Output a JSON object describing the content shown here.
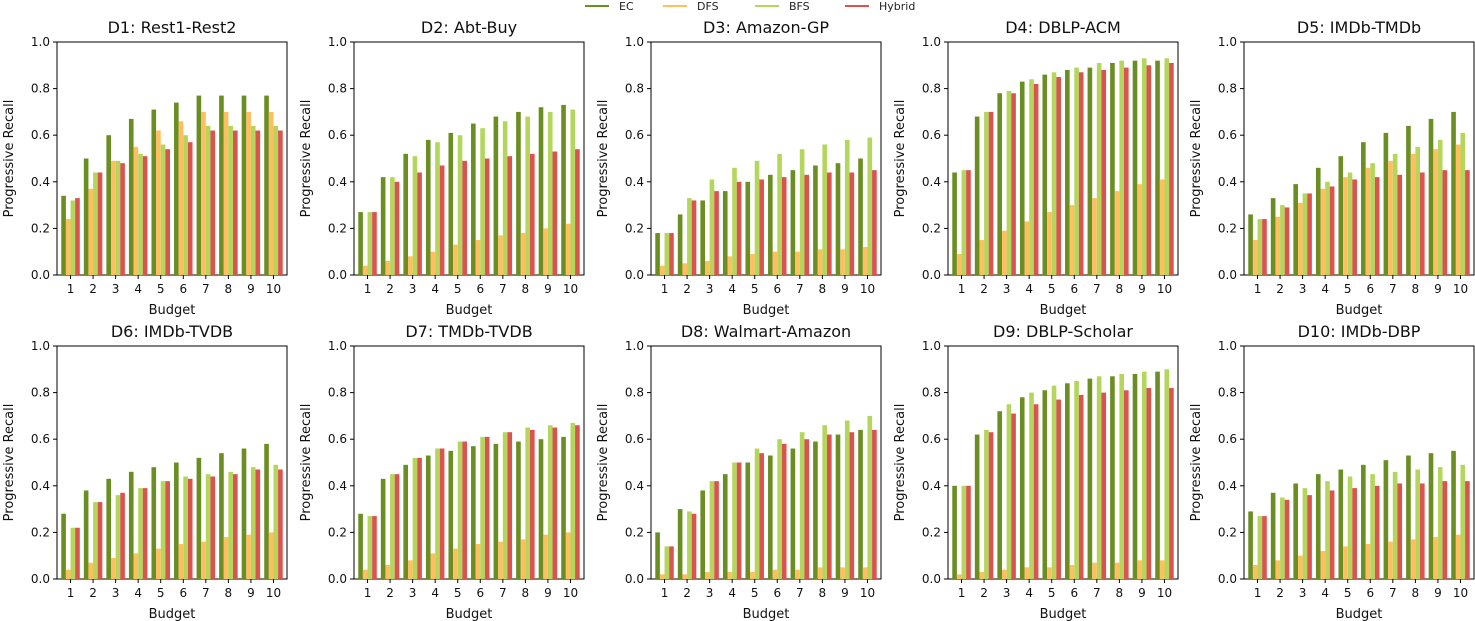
{
  "legend": {
    "items": [
      {
        "name": "EC",
        "color": "#6b8e23"
      },
      {
        "name": "DFS",
        "color": "#ffbf60"
      },
      {
        "name": "BFS",
        "color": "#b5d65c"
      },
      {
        "name": "Hybrid",
        "color": "#d9534f"
      }
    ]
  },
  "chart_data": [
    {
      "type": "bar",
      "title": "D1: Rest1-Rest2",
      "xlabel": "Budget",
      "ylabel": "Progressive Recall",
      "ylim": [
        0,
        1.0
      ],
      "yticks": [
        "0.0",
        "0.2",
        "0.4",
        "0.6",
        "0.8",
        "1.0"
      ],
      "categories": [
        "1",
        "2",
        "3",
        "4",
        "5",
        "6",
        "7",
        "8",
        "9",
        "10"
      ],
      "series": [
        {
          "name": "EC",
          "values": [
            0.34,
            0.5,
            0.6,
            0.67,
            0.71,
            0.74,
            0.77,
            0.77,
            0.77,
            0.77
          ]
        },
        {
          "name": "DFS",
          "values": [
            0.24,
            0.37,
            0.49,
            0.55,
            0.62,
            0.66,
            0.7,
            0.7,
            0.7,
            0.7
          ]
        },
        {
          "name": "BFS",
          "values": [
            0.32,
            0.44,
            0.49,
            0.52,
            0.56,
            0.6,
            0.64,
            0.64,
            0.64,
            0.64
          ]
        },
        {
          "name": "Hybrid",
          "values": [
            0.33,
            0.44,
            0.48,
            0.51,
            0.54,
            0.57,
            0.62,
            0.62,
            0.62,
            0.62
          ]
        }
      ]
    },
    {
      "type": "bar",
      "title": "D2: Abt-Buy",
      "xlabel": "Budget",
      "ylabel": "Progressive Recall",
      "ylim": [
        0,
        1.0
      ],
      "yticks": [
        "0.0",
        "0.2",
        "0.4",
        "0.6",
        "0.8",
        "1.0"
      ],
      "categories": [
        "1",
        "2",
        "3",
        "4",
        "5",
        "6",
        "7",
        "8",
        "9",
        "10"
      ],
      "series": [
        {
          "name": "EC",
          "values": [
            0.27,
            0.42,
            0.52,
            0.58,
            0.61,
            0.65,
            0.68,
            0.7,
            0.72,
            0.73
          ]
        },
        {
          "name": "DFS",
          "values": [
            0.04,
            0.06,
            0.08,
            0.1,
            0.13,
            0.15,
            0.17,
            0.18,
            0.2,
            0.22
          ]
        },
        {
          "name": "BFS",
          "values": [
            0.27,
            0.42,
            0.51,
            0.57,
            0.6,
            0.63,
            0.66,
            0.68,
            0.7,
            0.71
          ]
        },
        {
          "name": "Hybrid",
          "values": [
            0.27,
            0.4,
            0.44,
            0.47,
            0.49,
            0.5,
            0.51,
            0.52,
            0.53,
            0.54
          ]
        }
      ]
    },
    {
      "type": "bar",
      "title": "D3: Amazon-GP",
      "xlabel": "Budget",
      "ylabel": "Progressive Recall",
      "ylim": [
        0,
        1.0
      ],
      "yticks": [
        "0.0",
        "0.2",
        "0.4",
        "0.6",
        "0.8",
        "1.0"
      ],
      "categories": [
        "1",
        "2",
        "3",
        "4",
        "5",
        "6",
        "7",
        "8",
        "9",
        "10"
      ],
      "series": [
        {
          "name": "EC",
          "values": [
            0.18,
            0.26,
            0.32,
            0.36,
            0.4,
            0.43,
            0.45,
            0.47,
            0.48,
            0.5
          ]
        },
        {
          "name": "DFS",
          "values": [
            0.04,
            0.05,
            0.06,
            0.08,
            0.09,
            0.1,
            0.1,
            0.11,
            0.11,
            0.12
          ]
        },
        {
          "name": "BFS",
          "values": [
            0.18,
            0.33,
            0.41,
            0.46,
            0.49,
            0.52,
            0.54,
            0.56,
            0.58,
            0.59
          ]
        },
        {
          "name": "Hybrid",
          "values": [
            0.18,
            0.32,
            0.36,
            0.4,
            0.41,
            0.42,
            0.43,
            0.44,
            0.44,
            0.45
          ]
        }
      ]
    },
    {
      "type": "bar",
      "title": "D4: DBLP-ACM",
      "xlabel": "Budget",
      "ylabel": "Progressive Recall",
      "ylim": [
        0,
        1.0
      ],
      "yticks": [
        "0.0",
        "0.2",
        "0.4",
        "0.6",
        "0.8",
        "1.0"
      ],
      "categories": [
        "1",
        "2",
        "3",
        "4",
        "5",
        "6",
        "7",
        "8",
        "9",
        "10"
      ],
      "series": [
        {
          "name": "EC",
          "values": [
            0.44,
            0.68,
            0.78,
            0.83,
            0.86,
            0.88,
            0.89,
            0.91,
            0.92,
            0.92
          ]
        },
        {
          "name": "DFS",
          "values": [
            0.09,
            0.15,
            0.19,
            0.23,
            0.27,
            0.3,
            0.33,
            0.36,
            0.39,
            0.41
          ]
        },
        {
          "name": "BFS",
          "values": [
            0.45,
            0.7,
            0.79,
            0.84,
            0.87,
            0.89,
            0.91,
            0.92,
            0.93,
            0.93
          ]
        },
        {
          "name": "Hybrid",
          "values": [
            0.45,
            0.7,
            0.78,
            0.82,
            0.85,
            0.87,
            0.88,
            0.89,
            0.9,
            0.91
          ]
        }
      ]
    },
    {
      "type": "bar",
      "title": "D5: IMDb-TMDb",
      "xlabel": "Budget",
      "ylabel": "Progressive Recall",
      "ylim": [
        0,
        1.0
      ],
      "yticks": [
        "0.0",
        "0.2",
        "0.4",
        "0.6",
        "0.8",
        "1.0"
      ],
      "categories": [
        "1",
        "2",
        "3",
        "4",
        "5",
        "6",
        "7",
        "8",
        "9",
        "10"
      ],
      "series": [
        {
          "name": "EC",
          "values": [
            0.26,
            0.33,
            0.39,
            0.46,
            0.51,
            0.57,
            0.61,
            0.64,
            0.67,
            0.7
          ]
        },
        {
          "name": "DFS",
          "values": [
            0.15,
            0.25,
            0.31,
            0.37,
            0.42,
            0.46,
            0.49,
            0.52,
            0.54,
            0.56
          ]
        },
        {
          "name": "BFS",
          "values": [
            0.24,
            0.3,
            0.35,
            0.4,
            0.44,
            0.48,
            0.52,
            0.55,
            0.58,
            0.61
          ]
        },
        {
          "name": "Hybrid",
          "values": [
            0.24,
            0.29,
            0.35,
            0.38,
            0.41,
            0.42,
            0.43,
            0.44,
            0.45,
            0.45
          ]
        }
      ]
    },
    {
      "type": "bar",
      "title": "D6: IMDb-TVDB",
      "xlabel": "Budget",
      "ylabel": "Progressive Recall",
      "ylim": [
        0,
        1.0
      ],
      "yticks": [
        "0.0",
        "0.2",
        "0.4",
        "0.6",
        "0.8",
        "1.0"
      ],
      "categories": [
        "1",
        "2",
        "3",
        "4",
        "5",
        "6",
        "7",
        "8",
        "9",
        "10"
      ],
      "series": [
        {
          "name": "EC",
          "values": [
            0.28,
            0.38,
            0.43,
            0.46,
            0.48,
            0.5,
            0.52,
            0.54,
            0.56,
            0.58
          ]
        },
        {
          "name": "DFS",
          "values": [
            0.04,
            0.07,
            0.09,
            0.11,
            0.13,
            0.15,
            0.16,
            0.18,
            0.19,
            0.2
          ]
        },
        {
          "name": "BFS",
          "values": [
            0.22,
            0.33,
            0.36,
            0.39,
            0.42,
            0.44,
            0.45,
            0.46,
            0.48,
            0.49
          ]
        },
        {
          "name": "Hybrid",
          "values": [
            0.22,
            0.33,
            0.37,
            0.39,
            0.42,
            0.43,
            0.44,
            0.45,
            0.47,
            0.47
          ]
        }
      ]
    },
    {
      "type": "bar",
      "title": "D7: TMDb-TVDB",
      "xlabel": "Budget",
      "ylabel": "Progressive Recall",
      "ylim": [
        0,
        1.0
      ],
      "yticks": [
        "0.0",
        "0.2",
        "0.4",
        "0.6",
        "0.8",
        "1.0"
      ],
      "categories": [
        "1",
        "2",
        "3",
        "4",
        "5",
        "6",
        "7",
        "8",
        "9",
        "10"
      ],
      "series": [
        {
          "name": "EC",
          "values": [
            0.28,
            0.43,
            0.49,
            0.53,
            0.55,
            0.57,
            0.58,
            0.59,
            0.6,
            0.61
          ]
        },
        {
          "name": "DFS",
          "values": [
            0.04,
            0.06,
            0.08,
            0.11,
            0.13,
            0.15,
            0.16,
            0.17,
            0.19,
            0.2
          ]
        },
        {
          "name": "BFS",
          "values": [
            0.27,
            0.45,
            0.52,
            0.56,
            0.59,
            0.61,
            0.63,
            0.65,
            0.66,
            0.67
          ]
        },
        {
          "name": "Hybrid",
          "values": [
            0.27,
            0.45,
            0.52,
            0.56,
            0.59,
            0.61,
            0.63,
            0.64,
            0.65,
            0.66
          ]
        }
      ]
    },
    {
      "type": "bar",
      "title": "D8: Walmart-Amazon",
      "xlabel": "Budget",
      "ylabel": "Progressive Recall",
      "ylim": [
        0,
        1.0
      ],
      "yticks": [
        "0.0",
        "0.2",
        "0.4",
        "0.6",
        "0.8",
        "1.0"
      ],
      "categories": [
        "1",
        "2",
        "3",
        "4",
        "5",
        "6",
        "7",
        "8",
        "9",
        "10"
      ],
      "series": [
        {
          "name": "EC",
          "values": [
            0.2,
            0.3,
            0.38,
            0.45,
            0.5,
            0.53,
            0.56,
            0.59,
            0.62,
            0.64
          ]
        },
        {
          "name": "DFS",
          "values": [
            0.02,
            0.02,
            0.03,
            0.03,
            0.03,
            0.04,
            0.04,
            0.05,
            0.05,
            0.05
          ]
        },
        {
          "name": "BFS",
          "values": [
            0.14,
            0.29,
            0.42,
            0.5,
            0.56,
            0.6,
            0.63,
            0.66,
            0.68,
            0.7
          ]
        },
        {
          "name": "Hybrid",
          "values": [
            0.14,
            0.28,
            0.42,
            0.5,
            0.54,
            0.58,
            0.6,
            0.62,
            0.63,
            0.64
          ]
        }
      ]
    },
    {
      "type": "bar",
      "title": "D9: DBLP-Scholar",
      "xlabel": "Budget",
      "ylabel": "Progressive Recall",
      "ylim": [
        0,
        1.0
      ],
      "yticks": [
        "0.0",
        "0.2",
        "0.4",
        "0.6",
        "0.8",
        "1.0"
      ],
      "categories": [
        "1",
        "2",
        "3",
        "4",
        "5",
        "6",
        "7",
        "8",
        "9",
        "10"
      ],
      "series": [
        {
          "name": "EC",
          "values": [
            0.4,
            0.62,
            0.72,
            0.78,
            0.81,
            0.84,
            0.86,
            0.87,
            0.88,
            0.89
          ]
        },
        {
          "name": "DFS",
          "values": [
            0.02,
            0.03,
            0.04,
            0.05,
            0.05,
            0.06,
            0.07,
            0.07,
            0.08,
            0.08
          ]
        },
        {
          "name": "BFS",
          "values": [
            0.4,
            0.64,
            0.75,
            0.8,
            0.83,
            0.85,
            0.87,
            0.88,
            0.89,
            0.9
          ]
        },
        {
          "name": "Hybrid",
          "values": [
            0.4,
            0.63,
            0.71,
            0.75,
            0.77,
            0.79,
            0.8,
            0.81,
            0.82,
            0.82
          ]
        }
      ]
    },
    {
      "type": "bar",
      "title": "D10: IMDb-DBP",
      "xlabel": "Budget",
      "ylabel": "Progressive Recall",
      "ylim": [
        0,
        1.0
      ],
      "yticks": [
        "0.0",
        "0.2",
        "0.4",
        "0.6",
        "0.8",
        "1.0"
      ],
      "categories": [
        "1",
        "2",
        "3",
        "4",
        "5",
        "6",
        "7",
        "8",
        "9",
        "10"
      ],
      "series": [
        {
          "name": "EC",
          "values": [
            0.29,
            0.37,
            0.41,
            0.45,
            0.47,
            0.49,
            0.51,
            0.53,
            0.54,
            0.55
          ]
        },
        {
          "name": "DFS",
          "values": [
            0.06,
            0.08,
            0.1,
            0.12,
            0.14,
            0.15,
            0.16,
            0.17,
            0.18,
            0.19
          ]
        },
        {
          "name": "BFS",
          "values": [
            0.27,
            0.35,
            0.39,
            0.42,
            0.44,
            0.45,
            0.46,
            0.47,
            0.48,
            0.49
          ]
        },
        {
          "name": "Hybrid",
          "values": [
            0.27,
            0.34,
            0.36,
            0.38,
            0.39,
            0.4,
            0.41,
            0.41,
            0.42,
            0.42
          ]
        }
      ]
    }
  ]
}
